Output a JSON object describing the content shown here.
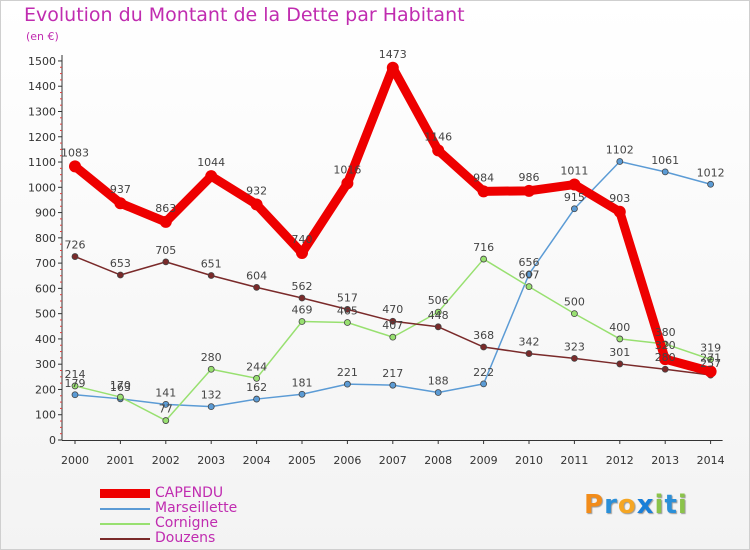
{
  "header": {
    "title": "Evolution du Montant de la Dette par Habitant",
    "subtitle": "(en €)"
  },
  "logo": {
    "letters": [
      "P",
      "r",
      "o",
      "x",
      "i",
      "t",
      "i"
    ],
    "colors": [
      "#f28c1a",
      "#2a8fd8",
      "#f5a623",
      "#1a7fd8",
      "#8bc34a",
      "#2a8fd8",
      "#8bc34a"
    ]
  },
  "chart_data": {
    "type": "line",
    "title": "Evolution du Montant de la Dette par Habitant",
    "subtitle": "(en €)",
    "xlabel": "",
    "ylabel": "",
    "x": [
      "2000",
      "2001",
      "2002",
      "2003",
      "2004",
      "2005",
      "2006",
      "2007",
      "2008",
      "2009",
      "2010",
      "2011",
      "2012",
      "2013",
      "2014"
    ],
    "ylim": [
      0,
      1500
    ],
    "yticks": [
      0,
      100,
      200,
      300,
      400,
      500,
      600,
      700,
      800,
      900,
      1000,
      1100,
      1200,
      1300,
      1400,
      1500
    ],
    "grid": false,
    "legend_position": "bottom-left",
    "series": [
      {
        "name": "CAPENDU",
        "color": "#ee0000",
        "emphasis": true,
        "values": [
          1083,
          937,
          863,
          1044,
          932,
          740,
          1016,
          1473,
          1146,
          984,
          986,
          1011,
          903,
          320,
          271
        ]
      },
      {
        "name": "Marseillette",
        "color": "#5b9bd5",
        "emphasis": false,
        "values": [
          179,
          163,
          141,
          132,
          162,
          181,
          221,
          217,
          188,
          222,
          656,
          915,
          1102,
          1061,
          1012
        ]
      },
      {
        "name": "Cornigne",
        "color": "#98e070",
        "emphasis": false,
        "values": [
          214,
          170,
          77,
          280,
          244,
          469,
          465,
          407,
          506,
          716,
          607,
          500,
          400,
          380,
          319
        ]
      },
      {
        "name": "Douzens",
        "color": "#7a2a2a",
        "emphasis": false,
        "values": [
          726,
          653,
          705,
          651,
          604,
          562,
          517,
          470,
          448,
          368,
          342,
          323,
          301,
          280,
          257
        ]
      }
    ]
  }
}
